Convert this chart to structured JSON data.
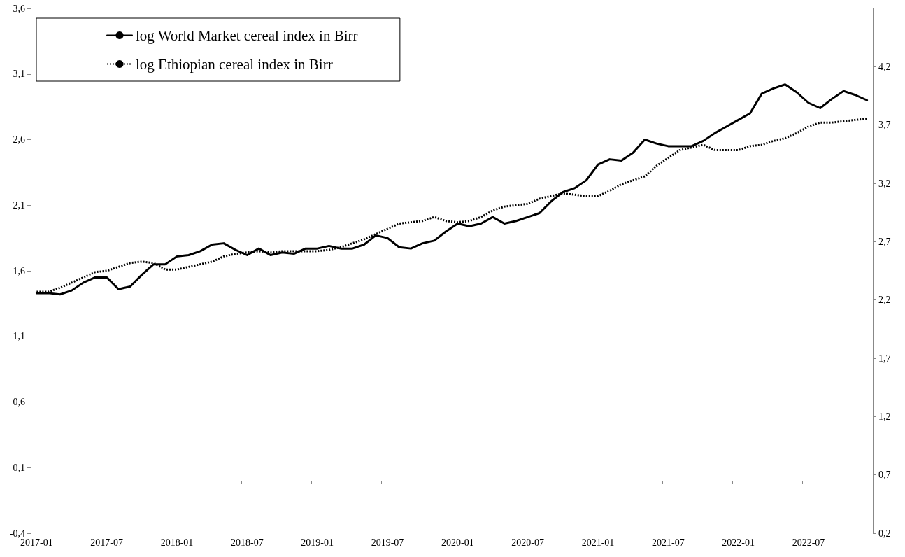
{
  "chart_data": {
    "type": "line",
    "categories": [
      "2017-01",
      null,
      null,
      null,
      null,
      null,
      "2017-07",
      null,
      null,
      null,
      null,
      null,
      "2018-01",
      null,
      null,
      null,
      null,
      null,
      "2018-07",
      null,
      null,
      null,
      null,
      null,
      "2019-01",
      null,
      null,
      null,
      null,
      null,
      "2019-07",
      null,
      null,
      null,
      null,
      null,
      "2020-01",
      null,
      null,
      null,
      null,
      null,
      "2020-07",
      null,
      null,
      null,
      null,
      null,
      "2021-01",
      null,
      null,
      null,
      null,
      null,
      "2021-07",
      null,
      null,
      null,
      null,
      null,
      "2022-01",
      null,
      null,
      null,
      null,
      null,
      "2022-07",
      null,
      null,
      null,
      null,
      null
    ],
    "series": [
      {
        "name": "log World Market cereal index in Birr",
        "color": "#000000",
        "line_style": "solid",
        "values": [
          1.43,
          1.43,
          1.42,
          1.45,
          1.51,
          1.55,
          1.55,
          1.46,
          1.48,
          1.57,
          1.65,
          1.65,
          1.71,
          1.72,
          1.75,
          1.8,
          1.81,
          1.76,
          1.72,
          1.77,
          1.72,
          1.74,
          1.73,
          1.77,
          1.77,
          1.79,
          1.77,
          1.77,
          1.8,
          1.87,
          1.85,
          1.78,
          1.77,
          1.81,
          1.83,
          1.9,
          1.96,
          1.94,
          1.96,
          2.01,
          1.96,
          1.98,
          2.01,
          2.04,
          2.13,
          2.2,
          2.23,
          2.29,
          2.41,
          2.45,
          2.44,
          2.5,
          2.6,
          2.57,
          2.55,
          2.55,
          2.55,
          2.59,
          2.65,
          2.7,
          2.75,
          2.8,
          2.95,
          2.99,
          3.02,
          2.96,
          2.88,
          2.84,
          2.91,
          2.97,
          2.94,
          2.9
        ]
      },
      {
        "name": "log Ethiopian cereal index in Birr",
        "color": "#000000",
        "line_style": "dotted",
        "values": [
          1.44,
          1.44,
          1.47,
          1.51,
          1.55,
          1.59,
          1.6,
          1.63,
          1.66,
          1.67,
          1.66,
          1.61,
          1.61,
          1.63,
          1.65,
          1.67,
          1.71,
          1.73,
          1.74,
          1.75,
          1.74,
          1.75,
          1.75,
          1.75,
          1.75,
          1.76,
          1.78,
          1.81,
          1.84,
          1.88,
          1.92,
          1.96,
          1.97,
          1.98,
          2.01,
          1.98,
          1.97,
          1.98,
          2.01,
          2.06,
          2.09,
          2.1,
          2.11,
          2.15,
          2.17,
          2.19,
          2.18,
          2.17,
          2.17,
          2.21,
          2.26,
          2.29,
          2.32,
          2.4,
          2.46,
          2.52,
          2.54,
          2.56,
          2.52,
          2.52,
          2.52,
          2.55,
          2.56,
          2.59,
          2.61,
          2.65,
          2.7,
          2.73,
          2.73,
          2.74,
          2.75,
          2.76
        ]
      }
    ],
    "ylim": [
      -0.4,
      3.6
    ],
    "yticks": [
      {
        "value": -0.4,
        "label": "-0,4"
      },
      {
        "value": 0.1,
        "label": "0,1"
      },
      {
        "value": 0.6,
        "label": "0,6"
      },
      {
        "value": 1.1,
        "label": "1,1"
      },
      {
        "value": 1.6,
        "label": "1,6"
      },
      {
        "value": 2.1,
        "label": "2,1"
      },
      {
        "value": 2.6,
        "label": "2,6"
      },
      {
        "value": 3.1,
        "label": "3,1"
      },
      {
        "value": 3.6,
        "label": "3,6"
      }
    ],
    "y2lim": [
      0.2,
      4.7
    ],
    "y2ticks": [
      {
        "value": 0.2,
        "label": "0,2"
      },
      {
        "value": 0.7,
        "label": "0,7"
      },
      {
        "value": 1.2,
        "label": "1,2"
      },
      {
        "value": 1.7,
        "label": "1,7"
      },
      {
        "value": 2.2,
        "label": "2,2"
      },
      {
        "value": 2.7,
        "label": "2,7"
      },
      {
        "value": 3.2,
        "label": "3,2"
      },
      {
        "value": 3.7,
        "label": "3,7"
      },
      {
        "value": 4.2,
        "label": "4,2"
      }
    ],
    "grid": false,
    "legend": "top left",
    "marker": "none"
  }
}
